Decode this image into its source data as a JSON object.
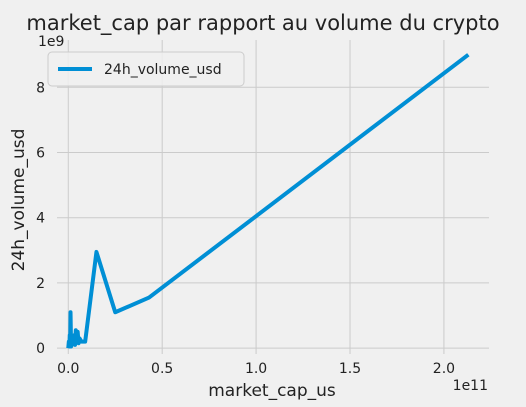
{
  "chart_data": {
    "type": "line",
    "title": "market_cap par rapport au volume du crypto",
    "xlabel": "market_cap_us",
    "ylabel": "24h_volume_usd",
    "x_offset_label": "1e11",
    "y_offset_label": "1e9",
    "x_scale_factor": 100000000000,
    "y_scale_factor": 1000000000,
    "xlim": [
      -0.06,
      2.24
    ],
    "ylim": [
      -0.18,
      9.45
    ],
    "x_ticks": [
      0.0,
      0.5,
      1.0,
      1.5,
      2.0
    ],
    "x_tick_labels": [
      "0.0",
      "0.5",
      "1.0",
      "1.5",
      "2.0"
    ],
    "y_ticks": [
      0,
      2,
      4,
      6,
      8
    ],
    "y_tick_labels": [
      "0",
      "2",
      "4",
      "6",
      "8"
    ],
    "grid": true,
    "legend": {
      "position": "top-left",
      "entries": [
        "24h_volume_usd"
      ]
    },
    "series": [
      {
        "name": "24h_volume_usd",
        "color": "#008fd5",
        "x": [
          0.0,
          0.003,
          0.006,
          0.008,
          0.01,
          0.012,
          0.015,
          0.018,
          0.02,
          0.025,
          0.03,
          0.033,
          0.036,
          0.04,
          0.045,
          0.05,
          0.055,
          0.06,
          0.07,
          0.08,
          0.09,
          0.15,
          0.25,
          0.43,
          2.13
        ],
        "y": [
          0.0,
          0.2,
          0.05,
          0.4,
          0.1,
          1.1,
          0.05,
          0.3,
          0.1,
          0.2,
          0.15,
          0.4,
          0.1,
          0.55,
          0.2,
          0.5,
          0.15,
          0.3,
          0.2,
          0.2,
          0.2,
          2.95,
          1.1,
          1.55,
          9.0
        ]
      }
    ]
  }
}
